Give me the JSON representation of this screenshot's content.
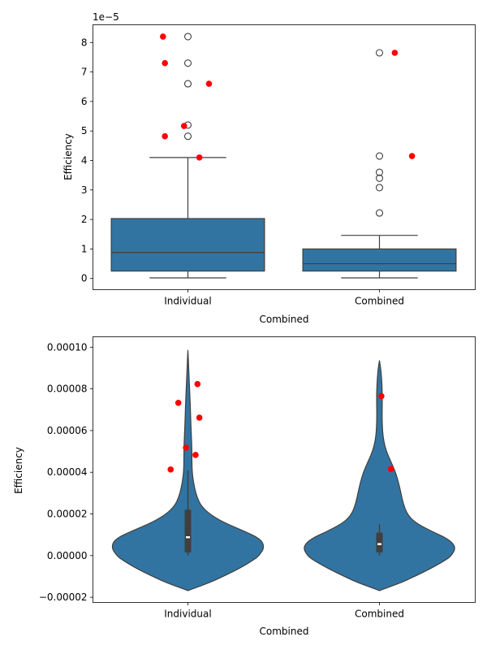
{
  "chart_data": [
    {
      "type": "box",
      "xlabel": "Combined",
      "ylabel": "Efficiency",
      "offset_text": "1e−5",
      "ylim": [
        -3.8e-06,
        8.6e-05
      ],
      "yticks": [
        0,
        1e-05,
        2e-05,
        3e-05,
        4e-05,
        5e-05,
        6e-05,
        7e-05,
        8e-05
      ],
      "ytick_labels": [
        "0",
        "1",
        "2",
        "3",
        "4",
        "5",
        "6",
        "7",
        "8"
      ],
      "categories": [
        "Individual",
        "Combined"
      ],
      "boxes": [
        {
          "q1": 2.5e-06,
          "median": 8.8e-06,
          "q3": 2.03e-05,
          "whislo": 2e-07,
          "whishi": 4.1e-05,
          "fliers": [
            8.2e-05,
            7.3e-05,
            6.6e-05,
            5.2e-05,
            4.82e-05
          ]
        },
        {
          "q1": 2.5e-06,
          "median": 5e-06,
          "q3": 1e-05,
          "whislo": 2e-07,
          "whishi": 1.46e-05,
          "fliers": [
            7.65e-05,
            4.15e-05,
            3.6e-05,
            3.4e-05,
            3.08e-05,
            2.22e-05
          ]
        }
      ],
      "red_points": [
        {
          "category": "Individual",
          "offset": -0.13,
          "value": 8.2e-05
        },
        {
          "category": "Individual",
          "offset": -0.12,
          "value": 7.3e-05
        },
        {
          "category": "Individual",
          "offset": 0.11,
          "value": 6.6e-05
        },
        {
          "category": "Individual",
          "offset": -0.02,
          "value": 5.17e-05
        },
        {
          "category": "Individual",
          "offset": -0.12,
          "value": 4.82e-05
        },
        {
          "category": "Individual",
          "offset": 0.06,
          "value": 4.1e-05
        },
        {
          "category": "Combined",
          "offset": 0.08,
          "value": 7.65e-05
        },
        {
          "category": "Combined",
          "offset": 0.17,
          "value": 4.15e-05
        }
      ],
      "box_color": "#3274a1",
      "point_color": "#ff0000"
    },
    {
      "type": "violin",
      "xlabel": "Combined",
      "ylabel": "Efficiency",
      "ylim": [
        -2.25e-05,
        0.000105
      ],
      "yticks": [
        -2e-05,
        0,
        2e-05,
        4e-05,
        6e-05,
        8e-05,
        0.0001
      ],
      "ytick_labels": [
        "−0.00002",
        "0.00000",
        "0.00002",
        "0.00004",
        "0.00006",
        "0.00008",
        "0.00010"
      ],
      "categories": [
        "Individual",
        "Combined"
      ],
      "violins": [
        {
          "profile": [
            [
              -1.68e-05,
              0.0
            ],
            [
              -1.6e-05,
              0.06
            ],
            [
              -1.3e-05,
              0.28
            ],
            [
              -1e-05,
              0.46
            ],
            [
              -6e-06,
              0.68
            ],
            [
              -2e-06,
              0.86
            ],
            [
              0.0,
              0.93
            ],
            [
              4e-06,
              1.0
            ],
            [
              8e-06,
              0.95
            ],
            [
              1.2e-05,
              0.72
            ],
            [
              1.6e-05,
              0.46
            ],
            [
              2e-05,
              0.28
            ],
            [
              2.4e-05,
              0.17
            ],
            [
              2.8e-05,
              0.12
            ],
            [
              3.2e-05,
              0.09
            ],
            [
              3.6e-05,
              0.07
            ],
            [
              4e-05,
              0.056
            ],
            [
              4.5e-05,
              0.052
            ],
            [
              5e-05,
              0.052
            ],
            [
              5.5e-05,
              0.048
            ],
            [
              6e-05,
              0.042
            ],
            [
              6.5e-05,
              0.037
            ],
            [
              7e-05,
              0.033
            ],
            [
              7.5e-05,
              0.028
            ],
            [
              8e-05,
              0.022
            ],
            [
              8.5e-05,
              0.016
            ],
            [
              9e-05,
              0.01
            ],
            [
              9.5e-05,
              0.005
            ],
            [
              9.85e-05,
              0.0
            ]
          ],
          "q1": 1.5e-06,
          "median": 8.8e-06,
          "q3": 2.2e-05,
          "whislo": 0.0,
          "whishi": 4.1e-05
        },
        {
          "profile": [
            [
              -1.68e-05,
              0.0
            ],
            [
              -1.6e-05,
              0.06
            ],
            [
              -1.3e-05,
              0.28
            ],
            [
              -1e-05,
              0.46
            ],
            [
              -6e-06,
              0.68
            ],
            [
              -2e-06,
              0.87
            ],
            [
              0.0,
              0.94
            ],
            [
              4e-06,
              1.0
            ],
            [
              8e-06,
              0.9
            ],
            [
              1.2e-05,
              0.66
            ],
            [
              1.6e-05,
              0.46
            ],
            [
              2e-05,
              0.36
            ],
            [
              2.5e-05,
              0.31
            ],
            [
              3e-05,
              0.28
            ],
            [
              3.5e-05,
              0.25
            ],
            [
              4e-05,
              0.21
            ],
            [
              4.5e-05,
              0.15
            ],
            [
              5e-05,
              0.09
            ],
            [
              5.5e-05,
              0.055
            ],
            [
              6e-05,
              0.04
            ],
            [
              6.5e-05,
              0.035
            ],
            [
              7e-05,
              0.035
            ],
            [
              7.5e-05,
              0.037
            ],
            [
              8e-05,
              0.035
            ],
            [
              8.5e-05,
              0.028
            ],
            [
              9e-05,
              0.016
            ],
            [
              9.35e-05,
              0.0
            ]
          ],
          "q1": 1.5e-06,
          "median": 5.5e-06,
          "q3": 1.1e-05,
          "whislo": 0.0,
          "whishi": 1.5e-05
        }
      ],
      "red_points": [
        {
          "category": "Individual",
          "offset": 0.05,
          "value": 8.23e-05
        },
        {
          "category": "Individual",
          "offset": -0.05,
          "value": 7.33e-05
        },
        {
          "category": "Individual",
          "offset": 0.06,
          "value": 6.62e-05
        },
        {
          "category": "Individual",
          "offset": -0.01,
          "value": 5.18e-05
        },
        {
          "category": "Individual",
          "offset": 0.04,
          "value": 4.83e-05
        },
        {
          "category": "Individual",
          "offset": -0.09,
          "value": 4.13e-05
        },
        {
          "category": "Combined",
          "offset": 0.01,
          "value": 7.65e-05
        },
        {
          "category": "Combined",
          "offset": 0.06,
          "value": 4.15e-05
        }
      ],
      "violin_color": "#3274a1",
      "point_color": "#ff0000"
    }
  ]
}
